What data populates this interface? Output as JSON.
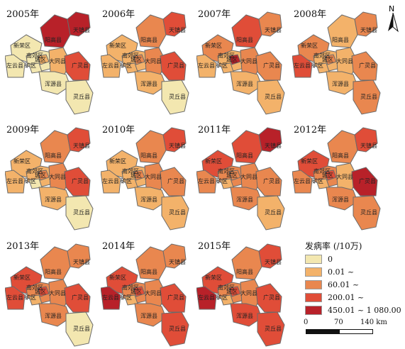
{
  "legend": {
    "title": "发病率 (/10万)",
    "items": [
      {
        "label": "0",
        "color": "#f3e7b0"
      },
      {
        "label": "0.01 ~",
        "color": "#f3b26a"
      },
      {
        "label": "60.01 ~",
        "color": "#e9874f"
      },
      {
        "label": "200.01 ~",
        "color": "#e04d38"
      },
      {
        "label": "450.01 ~ 1 080.00",
        "color": "#b82129"
      }
    ]
  },
  "scale_bar": {
    "labels": [
      "0",
      "70",
      "140 km"
    ]
  },
  "north_arrow": {
    "label": "N"
  },
  "counties": [
    "新荣区",
    "阳高县",
    "天镇县",
    "南郊区",
    "城区",
    "矿区",
    "左云县",
    "大同县",
    "广灵县",
    "浑源县",
    "灵丘县"
  ],
  "panels": [
    {
      "year": "2005年",
      "colors": [
        "#f3e7b0",
        "#b82129",
        "#b82129",
        "#f3e7b0",
        "#f3b26a",
        "#f3e7b0",
        "#f3e7b0",
        "#f3b26a",
        "#e04d38",
        "#f3e7b0",
        "#f3e7b0"
      ]
    },
    {
      "year": "2006年",
      "colors": [
        "#f3b26a",
        "#e9874f",
        "#e04d38",
        "#f3b26a",
        "#e9874f",
        "#f3b26a",
        "#f3b26a",
        "#e9874f",
        "#e04d38",
        "#f3b26a",
        "#f3e7b0"
      ]
    },
    {
      "year": "2007年",
      "colors": [
        "#e9874f",
        "#e04d38",
        "#e9874f",
        "#f3b26a",
        "#b82129",
        "#f3b26a",
        "#f3b26a",
        "#e9874f",
        "#e9874f",
        "#f3b26a",
        "#f3b26a"
      ]
    },
    {
      "year": "2008年",
      "colors": [
        "#e9874f",
        "#f3b26a",
        "#e9874f",
        "#f3b26a",
        "#e9874f",
        "#f3b26a",
        "#e04d38",
        "#f3b26a",
        "#e9874f",
        "#f3b26a",
        "#e9874f"
      ]
    },
    {
      "year": "2009年",
      "colors": [
        "#f3b26a",
        "#e9874f",
        "#e04d38",
        "#f3b26a",
        "#e9874f",
        "#f3e7b0",
        "#f3b26a",
        "#e9874f",
        "#e04d38",
        "#f3b26a",
        "#f3e7b0"
      ]
    },
    {
      "year": "2010年",
      "colors": [
        "#f3b26a",
        "#e9874f",
        "#e04d38",
        "#f3b26a",
        "#e9874f",
        "#f3b26a",
        "#f3b26a",
        "#e9874f",
        "#e9874f",
        "#f3b26a",
        "#f3b26a"
      ]
    },
    {
      "year": "2011年",
      "colors": [
        "#e04d38",
        "#e04d38",
        "#b82129",
        "#e9874f",
        "#e9874f",
        "#f3b26a",
        "#e9874f",
        "#e9874f",
        "#e9874f",
        "#e9874f",
        "#f3b26a"
      ]
    },
    {
      "year": "2012年",
      "colors": [
        "#e04d38",
        "#e9874f",
        "#e04d38",
        "#e9874f",
        "#e04d38",
        "#f3b26a",
        "#e9874f",
        "#f3b26a",
        "#b82129",
        "#e9874f",
        "#e9874f"
      ]
    },
    {
      "year": "2013年",
      "colors": [
        "#e04d38",
        "#e9874f",
        "#e9874f",
        "#e9874f",
        "#e04d38",
        "#f3b26a",
        "#e04d38",
        "#e9874f",
        "#e04d38",
        "#e9874f",
        "#f3e7b0"
      ]
    },
    {
      "year": "2014年",
      "colors": [
        "#e04d38",
        "#e9874f",
        "#e9874f",
        "#e9874f",
        "#e04d38",
        "#f3b26a",
        "#b82129",
        "#e9874f",
        "#e04d38",
        "#e9874f",
        "#e04d38"
      ]
    },
    {
      "year": "2015年",
      "colors": [
        "#e04d38",
        "#e9874f",
        "#e04d38",
        "#e9874f",
        "#e04d38",
        "#f3b26a",
        "#b82129",
        "#e9874f",
        "#e04d38",
        "#e04d38",
        "#e04d38"
      ]
    }
  ]
}
